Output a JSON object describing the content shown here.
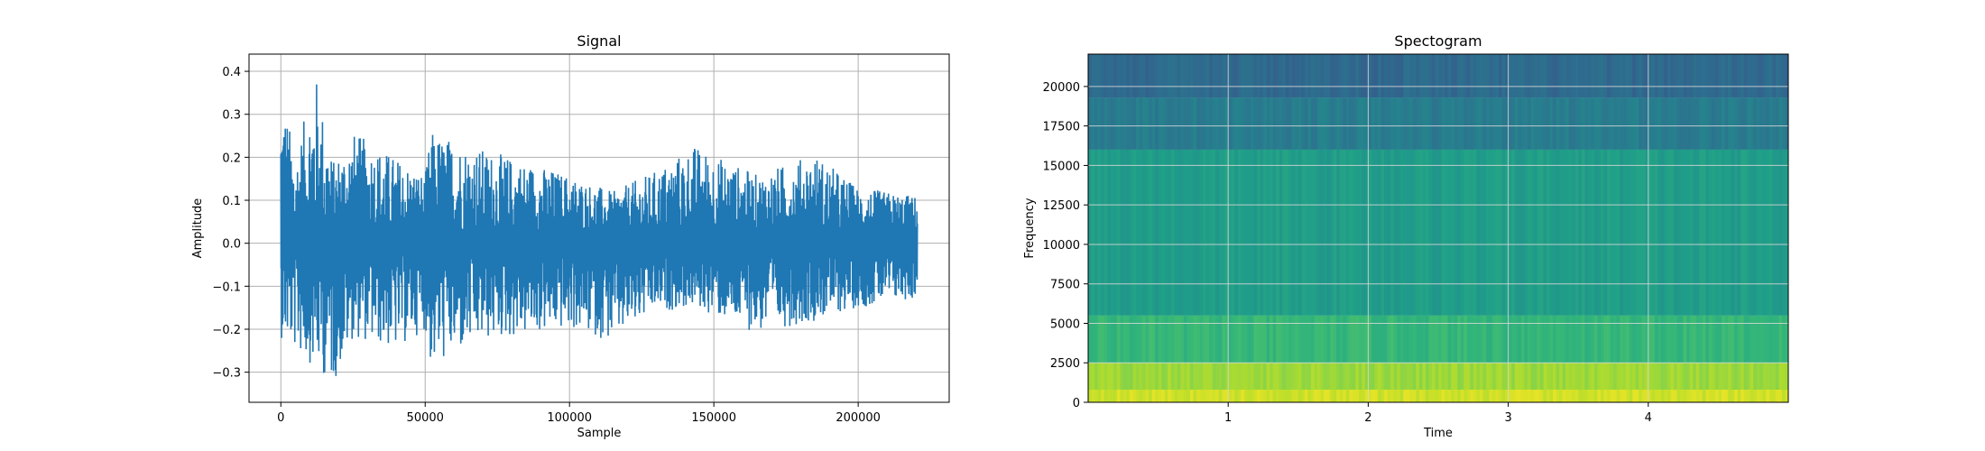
{
  "chart_data": [
    {
      "type": "line",
      "title": "Signal",
      "xlabel": "Sample",
      "ylabel": "Amplitude",
      "xlim": [
        -11025,
        231525
      ],
      "ylim": [
        -0.37,
        0.44
      ],
      "grid": true,
      "x_ticks": [
        0,
        50000,
        100000,
        150000,
        200000
      ],
      "x_tick_labels": [
        "0",
        "50000",
        "100000",
        "150000",
        "200000"
      ],
      "y_ticks": [
        -0.3,
        -0.2,
        -0.1,
        0.0,
        0.1,
        0.2,
        0.3,
        0.4
      ],
      "y_tick_labels": [
        "−0.3",
        "−0.2",
        "−0.1",
        "0.0",
        "0.1",
        "0.2",
        "0.3",
        "0.4"
      ],
      "series_color": "#1f77b4",
      "x_range": [
        0,
        220500
      ],
      "envelope": [
        {
          "x": 0,
          "max": 0.38,
          "min": -0.22
        },
        {
          "x": 5000,
          "max": 0.2,
          "min": -0.25
        },
        {
          "x": 12000,
          "max": 0.4,
          "min": -0.29
        },
        {
          "x": 18000,
          "max": 0.19,
          "min": -0.33
        },
        {
          "x": 25000,
          "max": 0.26,
          "min": -0.22
        },
        {
          "x": 40000,
          "max": 0.2,
          "min": -0.25
        },
        {
          "x": 50000,
          "max": 0.16,
          "min": -0.2
        },
        {
          "x": 52000,
          "max": 0.26,
          "min": -0.29
        },
        {
          "x": 70000,
          "max": 0.22,
          "min": -0.23
        },
        {
          "x": 100000,
          "max": 0.16,
          "min": -0.2
        },
        {
          "x": 115000,
          "max": 0.12,
          "min": -0.23
        },
        {
          "x": 130000,
          "max": 0.17,
          "min": -0.16
        },
        {
          "x": 143000,
          "max": 0.23,
          "min": -0.15
        },
        {
          "x": 165000,
          "max": 0.16,
          "min": -0.21
        },
        {
          "x": 185000,
          "max": 0.21,
          "min": -0.18
        },
        {
          "x": 200000,
          "max": 0.13,
          "min": -0.15
        },
        {
          "x": 220500,
          "max": 0.11,
          "min": -0.13
        }
      ]
    },
    {
      "type": "heatmap",
      "title": "Spectogram",
      "xlabel": "Time",
      "ylabel": "Frequency",
      "xlim": [
        0,
        5.0
      ],
      "ylim": [
        0,
        22050
      ],
      "grid": true,
      "x_ticks": [
        1,
        2,
        3,
        4
      ],
      "x_tick_labels": [
        "1",
        "2",
        "3",
        "4"
      ],
      "y_ticks": [
        0,
        2500,
        5000,
        7500,
        10000,
        12500,
        15000,
        17500,
        20000
      ],
      "y_tick_labels": [
        "0",
        "2500",
        "5000",
        "7500",
        "10000",
        "12500",
        "15000",
        "17500",
        "20000"
      ],
      "colormap": "viridis",
      "frequency_bands": [
        {
          "from": 0,
          "to": 800,
          "level": 0.93
        },
        {
          "from": 800,
          "to": 2500,
          "level": 0.85
        },
        {
          "from": 2500,
          "to": 5500,
          "level": 0.66
        },
        {
          "from": 5500,
          "to": 16000,
          "level": 0.55
        },
        {
          "from": 16000,
          "to": 19300,
          "level": 0.42
        },
        {
          "from": 19300,
          "to": 22050,
          "level": 0.34
        }
      ]
    }
  ]
}
